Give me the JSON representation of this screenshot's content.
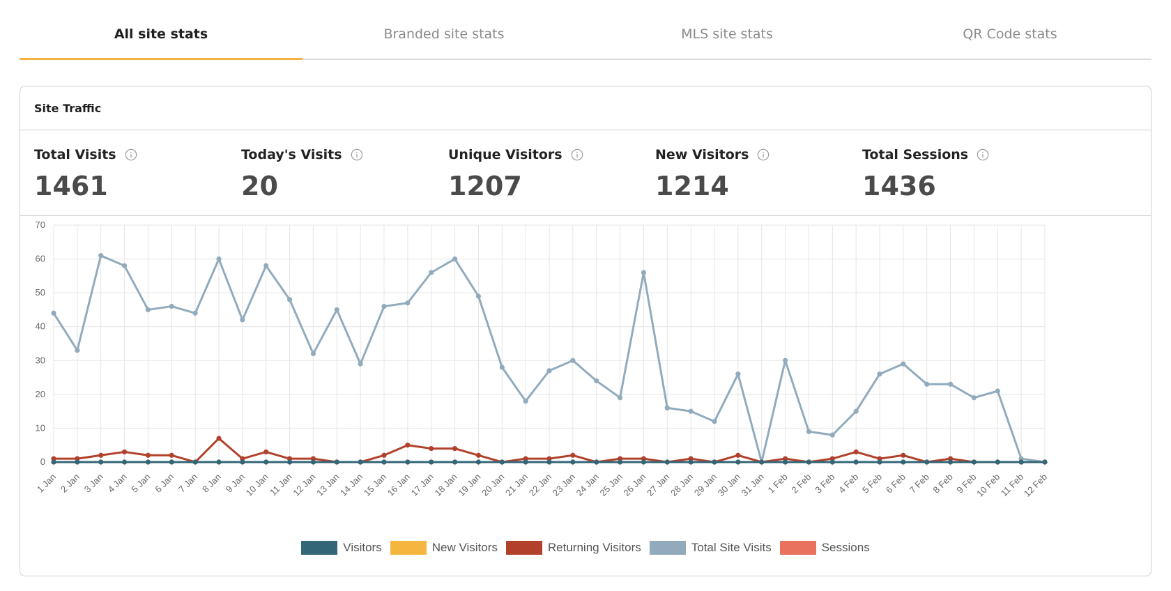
{
  "tabs": [
    {
      "label": "All site stats",
      "active": true
    },
    {
      "label": "Branded site stats",
      "active": false
    },
    {
      "label": "MLS site stats",
      "active": false
    },
    {
      "label": "QR Code stats",
      "active": false
    }
  ],
  "card": {
    "title": "Site Traffic",
    "stats": [
      {
        "label": "Total Visits",
        "value": "1461"
      },
      {
        "label": "Today's Visits",
        "value": "20"
      },
      {
        "label": "Unique Visitors",
        "value": "1207"
      },
      {
        "label": "New Visitors",
        "value": "1214"
      },
      {
        "label": "Total Sessions",
        "value": "1436"
      }
    ]
  },
  "chart_data": {
    "type": "line",
    "title": "",
    "xlabel": "",
    "ylabel": "",
    "ylim": [
      0,
      70
    ],
    "yticks": [
      0,
      10,
      20,
      30,
      40,
      50,
      60,
      70
    ],
    "grid": true,
    "legend_position": "bottom",
    "categories": [
      "1 Jan",
      "2 Jan",
      "3 Jan",
      "4 Jan",
      "5 Jan",
      "6 Jan",
      "7 Jan",
      "8 Jan",
      "9 Jan",
      "10 Jan",
      "11 Jan",
      "12 Jan",
      "13 Jan",
      "14 Jan",
      "15 Jan",
      "16 Jan",
      "17 Jan",
      "18 Jan",
      "19 Jan",
      "20 Jan",
      "21 Jan",
      "22 Jan",
      "23 Jan",
      "24 Jan",
      "25 Jan",
      "26 Jan",
      "27 Jan",
      "28 Jan",
      "29 Jan",
      "30 Jan",
      "31 Jan",
      "1 Feb",
      "2 Feb",
      "3 Feb",
      "4 Feb",
      "5 Feb",
      "6 Feb",
      "7 Feb",
      "8 Feb",
      "9 Feb",
      "10 Feb",
      "11 Feb",
      "12 Feb"
    ],
    "series": [
      {
        "name": "Total Site Visits",
        "color": "#91abbd",
        "values": [
          44,
          33,
          61,
          58,
          45,
          46,
          44,
          60,
          42,
          58,
          48,
          32,
          45,
          29,
          46,
          47,
          56,
          60,
          49,
          28,
          18,
          27,
          30,
          24,
          19,
          56,
          16,
          15,
          12,
          26,
          0,
          30,
          9,
          8,
          15,
          26,
          29,
          23,
          23,
          19,
          21,
          1,
          0
        ]
      },
      {
        "name": "Sessions",
        "color": "#e8725e",
        "values": [
          0,
          0,
          0,
          0,
          0,
          0,
          0,
          0,
          0,
          0,
          0,
          0,
          0,
          0,
          0,
          0,
          0,
          0,
          0,
          0,
          0,
          0,
          0,
          0,
          0,
          0,
          0,
          0,
          0,
          0,
          0,
          0,
          0,
          0,
          0,
          0,
          0,
          0,
          0,
          0,
          0,
          0,
          0
        ]
      },
      {
        "name": "New Visitors",
        "color": "#f5b640",
        "values": [
          0,
          0,
          0,
          0,
          0,
          0,
          0,
          0,
          0,
          0,
          0,
          0,
          0,
          0,
          0,
          0,
          0,
          0,
          0,
          0,
          0,
          0,
          0,
          0,
          0,
          0,
          0,
          0,
          0,
          0,
          0,
          0,
          0,
          0,
          0,
          0,
          0,
          0,
          0,
          0,
          0,
          0,
          0
        ]
      },
      {
        "name": "Returning Visitors",
        "color": "#b2412c",
        "values": [
          1,
          1,
          2,
          3,
          2,
          2,
          0,
          7,
          1,
          3,
          1,
          1,
          0,
          0,
          2,
          5,
          4,
          4,
          2,
          0,
          1,
          1,
          2,
          0,
          1,
          1,
          0,
          1,
          0,
          2,
          0,
          1,
          0,
          1,
          3,
          1,
          2,
          0,
          1,
          0,
          0,
          0,
          0
        ]
      },
      {
        "name": "Visitors",
        "color": "#336677",
        "values": [
          0,
          0,
          0,
          0,
          0,
          0,
          0,
          0,
          0,
          0,
          0,
          0,
          0,
          0,
          0,
          0,
          0,
          0,
          0,
          0,
          0,
          0,
          0,
          0,
          0,
          0,
          0,
          0,
          0,
          0,
          0,
          0,
          0,
          0,
          0,
          0,
          0,
          0,
          0,
          0,
          0,
          0,
          0
        ]
      }
    ],
    "legend": [
      {
        "name": "Visitors",
        "color": "#336677"
      },
      {
        "name": "New Visitors",
        "color": "#f5b640"
      },
      {
        "name": "Returning Visitors",
        "color": "#b2412c"
      },
      {
        "name": "Total Site Visits",
        "color": "#91abbd"
      },
      {
        "name": "Sessions",
        "color": "#e8725e"
      }
    ]
  }
}
